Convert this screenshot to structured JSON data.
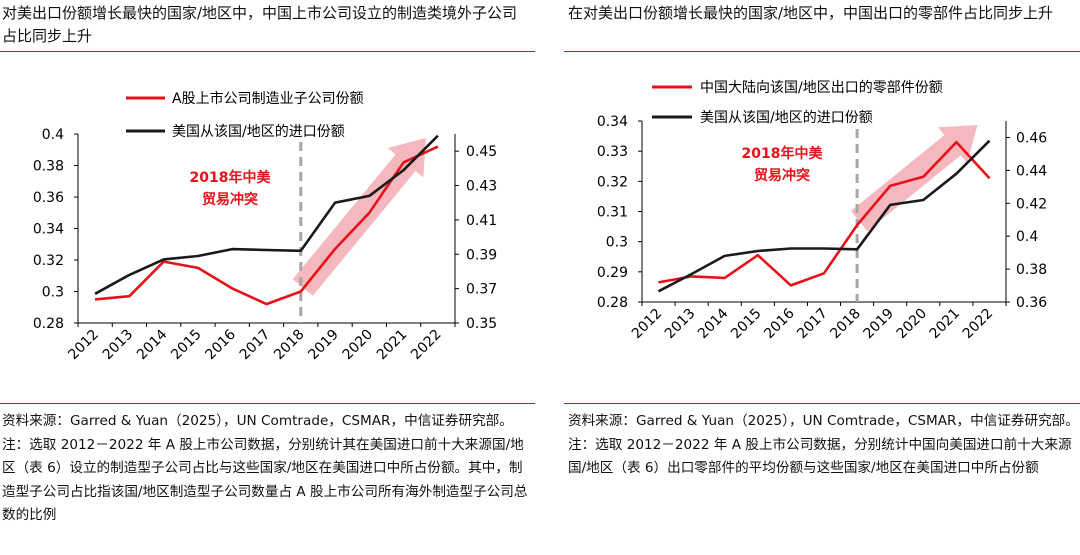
{
  "panels": [
    {
      "title": "对美出口份额增长最快的国家/地区中，中国上市公司设立的制造类境外子公司占比同步上升",
      "note": "资料来源：Garred & Yuan（2025），UN Comtrade，CSMAR，中信证券研究部。注：选取 2012－2022 年 A 股上市公司数据，分别统计其在美国进口前十大来源国/地区（表 6）设立的制造型子公司占比与这些国家/地区在美国进口中所占份额。其中，制造型子公司占比指该国/地区制造型子公司数量占 A 股上市公司所有海外制造型子公司总数的比例"
    },
    {
      "title": "在对美出口份额增长最快的国家/地区中，中国出口的零部件占比同步上升",
      "note": "资料来源：Garred & Yuan（2025），UN Comtrade，CSMAR，中信证券研究部。注：选取 2012－2022 年 A 股上市公司数据，分别统计中国向美国进口前十大来源国/地区（表 6）出口零部件的平均份额与这些国家/地区在美国进口中所占份额"
    }
  ],
  "chart_data": [
    {
      "type": "line",
      "categories": [
        "2012",
        "2013",
        "2014",
        "2015",
        "2016",
        "2017",
        "2018",
        "2019",
        "2020",
        "2021",
        "2022"
      ],
      "series": [
        {
          "name": "A股上市公司制造业子公司份额",
          "axis": "left",
          "color": "#e8111a",
          "values": [
            0.295,
            0.297,
            0.319,
            0.315,
            0.302,
            0.292,
            0.3,
            0.327,
            0.35,
            0.382,
            0.392
          ]
        },
        {
          "name": "美国从该国/地区的进口份额",
          "axis": "right",
          "color": "#1a1a1a",
          "values": [
            0.367,
            0.378,
            0.387,
            0.389,
            0.393,
            0.3925,
            0.392,
            0.42,
            0.424,
            0.439,
            0.459
          ]
        }
      ],
      "ylim_left": [
        0.28,
        0.4
      ],
      "yticks_left": [
        "0.28",
        "0.3",
        "0.32",
        "0.34",
        "0.36",
        "0.38",
        "0.4"
      ],
      "ylim_right": [
        0.35,
        0.46
      ],
      "yticks_right": [
        "0.35",
        "0.37",
        "0.39",
        "0.41",
        "0.43",
        "0.45"
      ],
      "vline_at": "2018",
      "annotation": [
        "2018年中美",
        "贸易冲突"
      ],
      "trend_arrow_range": [
        "2018",
        "2022"
      ]
    },
    {
      "type": "line",
      "categories": [
        "2012",
        "2013",
        "2014",
        "2015",
        "2016",
        "2017",
        "2018",
        "2019",
        "2020",
        "2021",
        "2022"
      ],
      "series": [
        {
          "name": "中国大陆向该国/地区出口的零部件份额",
          "axis": "left",
          "color": "#e8111a",
          "values": [
            0.2865,
            0.2885,
            0.288,
            0.2955,
            0.2855,
            0.2895,
            0.3055,
            0.3185,
            0.3215,
            0.333,
            0.321
          ]
        },
        {
          "name": "美国从该国/地区的进口份额",
          "axis": "right",
          "color": "#1a1a1a",
          "values": [
            0.3665,
            0.377,
            0.388,
            0.391,
            0.3925,
            0.3925,
            0.392,
            0.419,
            0.422,
            0.438,
            0.458
          ]
        }
      ],
      "ylim_left": [
        0.28,
        0.34
      ],
      "yticks_left": [
        "0.28",
        "0.29",
        "0.3",
        "0.31",
        "0.32",
        "0.33",
        "0.34"
      ],
      "ylim_right": [
        0.36,
        0.47
      ],
      "yticks_right": [
        "0.36",
        "0.38",
        "0.4",
        "0.42",
        "0.44",
        "0.46"
      ],
      "vline_at": "2018",
      "annotation": [
        "2018年中美",
        "贸易冲突"
      ],
      "trend_arrow_range": [
        "2018",
        "2022"
      ]
    }
  ],
  "colors": {
    "accent": "#c8102e",
    "red_series": "#e8111a",
    "black_series": "#1a1a1a",
    "arrow": "#f0a0a8",
    "vline": "#a6a6a6"
  }
}
